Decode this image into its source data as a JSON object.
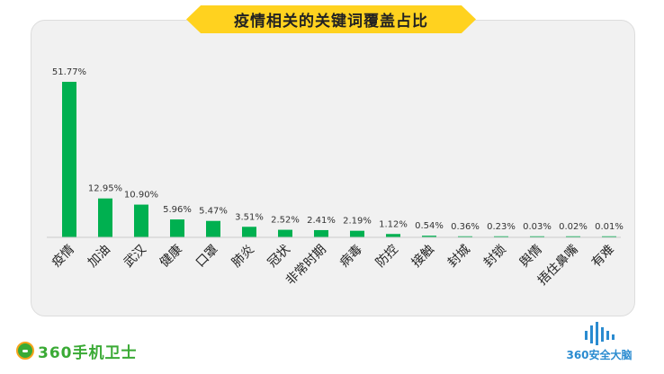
{
  "chart_data": {
    "type": "bar",
    "title": "疫情相关的关键词覆盖占比",
    "categories": [
      "疫情",
      "加油",
      "武汉",
      "健康",
      "口罩",
      "肺炎",
      "冠状",
      "非常时期",
      "病毒",
      "防控",
      "接触",
      "封城",
      "封锁",
      "舆情",
      "捂住鼻嘴",
      "有难"
    ],
    "values": [
      51.77,
      12.95,
      10.9,
      5.96,
      5.47,
      3.51,
      2.52,
      2.41,
      2.19,
      1.12,
      0.54,
      0.36,
      0.23,
      0.03,
      0.02,
      0.01
    ],
    "value_labels": [
      "51.77%",
      "12.95%",
      "10.90%",
      "5.96%",
      "5.47%",
      "3.51%",
      "2.52%",
      "2.41%",
      "2.19%",
      "1.12%",
      "0.54%",
      "0.36%",
      "0.23%",
      "0.03%",
      "0.02%",
      "0.01%"
    ],
    "ylim": [
      0,
      60
    ],
    "grid": false,
    "bar_color": "#00B050",
    "xlabel": "",
    "ylabel": ""
  },
  "branding": {
    "left_logo_text": "360手机卫士",
    "right_logo_text": "360安全大脑"
  },
  "colors": {
    "banner": "#FFD21F",
    "card_background": "#F1F1F1",
    "brand_green": "#3AAA35",
    "brand_blue": "#2A8BD0"
  }
}
